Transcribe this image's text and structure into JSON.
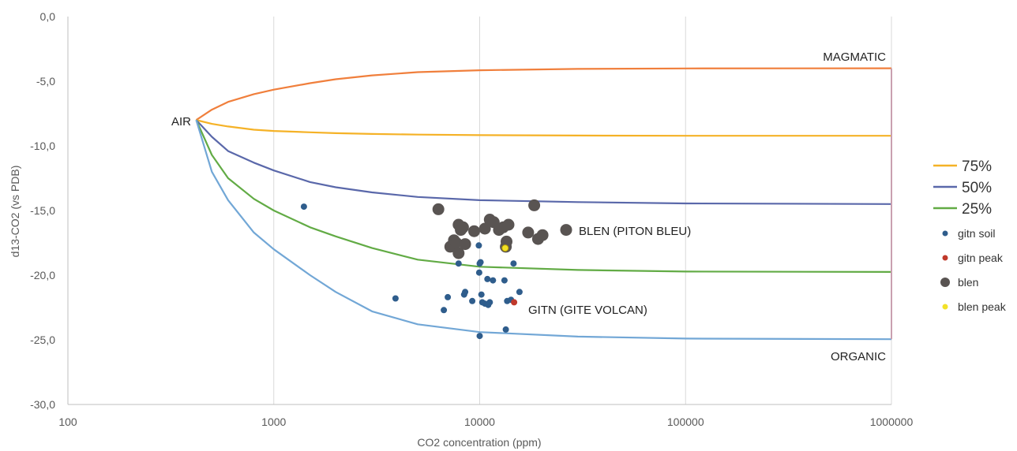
{
  "chart_data": {
    "type": "scatter",
    "xlabel": "CO2 concentration (ppm)",
    "ylabel": "d13-CO2 (vs PDB)",
    "x_scale": "log",
    "xlim": [
      100,
      1000000
    ],
    "ylim": [
      -30,
      0
    ],
    "x_ticks": [
      "100",
      "1000",
      "10000",
      "100000",
      "1000000"
    ],
    "y_ticks": [
      "0,0",
      "-5,0",
      "-10,0",
      "-15,0",
      "-20,0",
      "-25,0",
      "-30,0"
    ],
    "grid": "vertical",
    "legend_position": "right",
    "annotations": {
      "air": "AIR",
      "magmatic": "MAGMATIC",
      "organic": "ORGANIC",
      "blen": "BLEN (PITON BLEU)",
      "gitn": "GITN (GITE VOLCAN)"
    },
    "mixing_curves": [
      {
        "name": "",
        "color": "#f07f3c",
        "x": [
          420,
          500,
          600,
          800,
          1000,
          1500,
          2000,
          3000,
          5000,
          10000,
          30000,
          100000,
          1000000
        ],
        "y": [
          -8.0,
          -7.2,
          -6.6,
          -6.0,
          -5.65,
          -5.15,
          -4.85,
          -4.55,
          -4.3,
          -4.15,
          -4.05,
          -4.01,
          -4.0
        ]
      },
      {
        "name": "75%",
        "color": "#f5b227",
        "x": [
          420,
          500,
          600,
          800,
          1000,
          1500,
          2000,
          3000,
          5000,
          10000,
          30000,
          100000,
          1000000
        ],
        "y": [
          -8.0,
          -8.3,
          -8.5,
          -8.75,
          -8.85,
          -8.95,
          -9.02,
          -9.08,
          -9.13,
          -9.17,
          -9.2,
          -9.22,
          -9.22
        ]
      },
      {
        "name": "50%",
        "color": "#5a68aa",
        "x": [
          420,
          500,
          600,
          800,
          1000,
          1500,
          2000,
          3000,
          5000,
          10000,
          30000,
          100000,
          1000000
        ],
        "y": [
          -8.0,
          -9.3,
          -10.4,
          -11.3,
          -11.9,
          -12.8,
          -13.2,
          -13.6,
          -13.95,
          -14.2,
          -14.35,
          -14.45,
          -14.5
        ]
      },
      {
        "name": "25%",
        "color": "#62ab45",
        "x": [
          420,
          500,
          600,
          800,
          1000,
          1500,
          2000,
          3000,
          5000,
          10000,
          30000,
          100000,
          1000000
        ],
        "y": [
          -8.0,
          -10.7,
          -12.5,
          -14.1,
          -15.0,
          -16.3,
          -17.0,
          -17.9,
          -18.8,
          -19.35,
          -19.6,
          -19.72,
          -19.75
        ]
      },
      {
        "name": "",
        "color": "#72a7d6",
        "x": [
          420,
          500,
          600,
          800,
          1000,
          1500,
          2000,
          3000,
          5000,
          10000,
          30000,
          100000,
          1000000
        ],
        "y": [
          -8.0,
          -12.0,
          -14.2,
          -16.7,
          -18.0,
          -20.0,
          -21.3,
          -22.8,
          -23.8,
          -24.4,
          -24.75,
          -24.9,
          -24.95
        ]
      }
    ],
    "series": [
      {
        "name": "gitn soil",
        "color": "#2f5d8c",
        "marker_size": "small",
        "x": [
          1400,
          3900,
          6700,
          7000,
          7900,
          8400,
          8500,
          9200,
          9900,
          9950,
          10000,
          10100,
          10200,
          10300,
          10600,
          10900,
          11000,
          11200,
          11600,
          13200,
          13400,
          13600,
          14200,
          14600,
          15600,
          10000
        ],
        "y": [
          -14.7,
          -21.8,
          -22.7,
          -21.7,
          -19.1,
          -21.5,
          -21.3,
          -22.0,
          -17.7,
          -19.8,
          -19.1,
          -19.0,
          -21.5,
          -22.1,
          -22.2,
          -20.3,
          -22.3,
          -22.1,
          -20.4,
          -20.4,
          -24.2,
          -22.0,
          -21.9,
          -19.1,
          -21.3,
          -24.7
        ]
      },
      {
        "name": "gitn peak",
        "color": "#c0392b",
        "marker_size": "small",
        "x": [
          14700
        ],
        "y": [
          -22.1
        ]
      },
      {
        "name": "blen",
        "color": "#595452",
        "marker_size": "large",
        "x": [
          6300,
          7200,
          7500,
          7700,
          7900,
          8100,
          8300,
          8500,
          9400,
          10600,
          11200,
          11700,
          12400,
          13000,
          13400,
          13500,
          13800,
          17200,
          18400,
          19200,
          20200,
          26300,
          7900
        ],
        "y": [
          -14.9,
          -17.8,
          -17.3,
          -17.5,
          -16.1,
          -16.5,
          -16.3,
          -17.6,
          -16.6,
          -16.4,
          -15.7,
          -15.9,
          -16.5,
          -16.3,
          -17.8,
          -17.4,
          -16.1,
          -16.7,
          -14.6,
          -17.2,
          -16.9,
          -16.5,
          -18.3
        ]
      },
      {
        "name": "blen peak",
        "color": "#f2e128",
        "marker_size": "small",
        "x": [
          13300
        ],
        "y": [
          -17.9
        ]
      }
    ]
  }
}
